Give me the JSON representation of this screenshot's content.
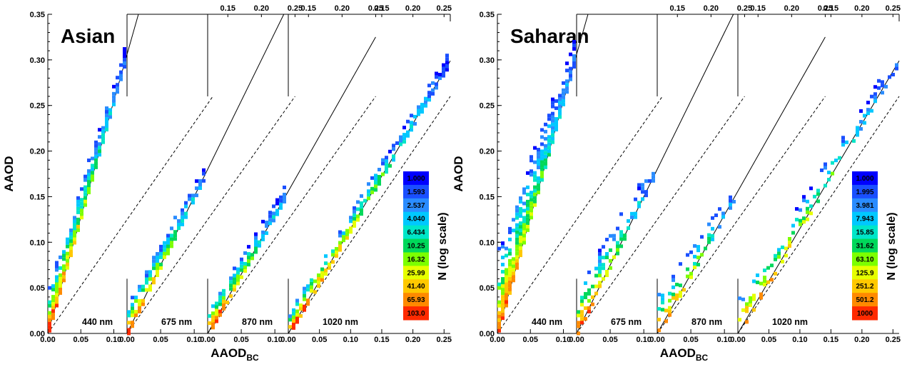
{
  "chart_data": [
    {
      "type": "heatmap",
      "title": "Asian",
      "xlabel": "AAOD",
      "xlabel_sub": "BC",
      "ylabel": "AAOD",
      "ylim": [
        0,
        0.35
      ],
      "y_ticks": [
        "0.00",
        "0.05",
        "0.10",
        "0.15",
        "0.20",
        "0.25",
        "0.30",
        "0.35"
      ],
      "colorbar": {
        "title": "N (log scale)",
        "labels": [
          "1.000",
          "1.593",
          "2.537",
          "4.040",
          "6.434",
          "10.25",
          "16.32",
          "25.99",
          "41.40",
          "65.93",
          "103.0"
        ]
      },
      "panels": [
        {
          "label": "440 nm",
          "xlim": [
            0,
            0.12
          ],
          "slope": 2.55,
          "x_ticks_bottom": [
            "0.00",
            "0.05",
            "0.10"
          ],
          "x_ticks_top": [],
          "spread": 0.55,
          "density": 1.0
        },
        {
          "label": "675 nm",
          "xlim": [
            0,
            0.12
          ],
          "slope": 1.5,
          "x_ticks_bottom": [
            "0.00",
            "0.05",
            "0.10"
          ],
          "x_ticks_top": [
            "0.15",
            "0.20",
            "0.25"
          ],
          "spread": 0.3,
          "density": 0.75
        },
        {
          "label": "870 nm",
          "xlim": [
            0,
            0.12
          ],
          "slope": 1.3,
          "x_ticks_bottom": [
            "0.00",
            "0.05",
            "0.10"
          ],
          "x_ticks_top": [
            "0.15",
            "0.20",
            "0.25"
          ],
          "spread": 0.22,
          "density": 0.7
        },
        {
          "label": "1020 nm",
          "xlim": [
            0,
            0.26
          ],
          "slope": 1.15,
          "x_ticks_bottom": [
            "0.00",
            "0.05",
            "0.10",
            "0.15",
            "0.20",
            "0.25"
          ],
          "x_ticks_top": [
            "0.15",
            "0.20",
            "0.25"
          ],
          "spread": 0.18,
          "density": 0.65
        }
      ]
    },
    {
      "type": "heatmap",
      "title": "Saharan",
      "xlabel": "AAOD",
      "xlabel_sub": "BC",
      "ylabel": "AAOD",
      "ylim": [
        0,
        0.35
      ],
      "y_ticks": [
        "0.00",
        "0.05",
        "0.10",
        "0.15",
        "0.20",
        "0.25",
        "0.30",
        "0.35"
      ],
      "colorbar": {
        "title": "N (log scale)",
        "labels": [
          "1.000",
          "1.995",
          "3.981",
          "7.943",
          "15.85",
          "31.62",
          "63.10",
          "125.9",
          "251.2",
          "501.2",
          "1000"
        ]
      },
      "panels": [
        {
          "label": "440 nm",
          "xlim": [
            0,
            0.12
          ],
          "slope": 2.55,
          "x_ticks_bottom": [
            "0.00",
            "0.05",
            "0.10"
          ],
          "x_ticks_top": [],
          "spread": 1.2,
          "density": 1.0
        },
        {
          "label": "675 nm",
          "xlim": [
            0,
            0.12
          ],
          "slope": 1.5,
          "x_ticks_bottom": [
            "0.00",
            "0.05",
            "0.10"
          ],
          "x_ticks_top": [
            "0.15",
            "0.20",
            "0.25"
          ],
          "spread": 0.6,
          "density": 0.45
        },
        {
          "label": "870 nm",
          "xlim": [
            0,
            0.12
          ],
          "slope": 1.3,
          "x_ticks_bottom": [
            "0.00",
            "0.05",
            "0.10"
          ],
          "x_ticks_top": [
            "0.15",
            "0.20",
            "0.25"
          ],
          "spread": 0.45,
          "density": 0.35
        },
        {
          "label": "1020 nm",
          "xlim": [
            0,
            0.26
          ],
          "slope": 1.15,
          "x_ticks_bottom": [
            "0.00",
            "0.05",
            "0.10",
            "0.15",
            "0.20",
            "0.25"
          ],
          "x_ticks_top": [
            "0.15",
            "0.20",
            "0.25"
          ],
          "spread": 0.4,
          "density": 0.3
        }
      ]
    }
  ],
  "colors": {
    "colormap": [
      "#0000ff",
      "#1a4fff",
      "#2a8cff",
      "#00c8ff",
      "#00e6c8",
      "#00d85a",
      "#7cff00",
      "#e6ff00",
      "#ffc800",
      "#ff8a00",
      "#ff2a00"
    ],
    "line": "#000000",
    "background": "#ffffff"
  }
}
